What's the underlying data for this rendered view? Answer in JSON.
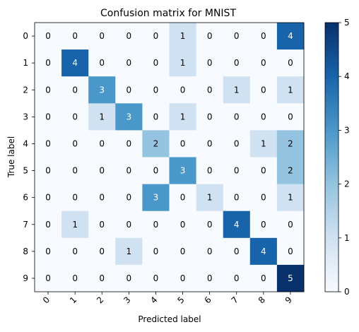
{
  "chart_data": {
    "type": "heatmap",
    "title": "Confusion matrix for MNIST",
    "xlabel": "Predicted label",
    "ylabel": "True label",
    "x_categories": [
      "0",
      "1",
      "2",
      "3",
      "4",
      "5",
      "6",
      "7",
      "8",
      "9"
    ],
    "y_categories": [
      "0",
      "1",
      "2",
      "3",
      "4",
      "5",
      "6",
      "7",
      "8",
      "9"
    ],
    "matrix": [
      [
        0,
        0,
        0,
        0,
        0,
        1,
        0,
        0,
        0,
        4
      ],
      [
        0,
        4,
        0,
        0,
        0,
        1,
        0,
        0,
        0,
        0
      ],
      [
        0,
        0,
        3,
        0,
        0,
        0,
        0,
        1,
        0,
        1
      ],
      [
        0,
        0,
        1,
        3,
        0,
        1,
        0,
        0,
        0,
        0
      ],
      [
        0,
        0,
        0,
        0,
        2,
        0,
        0,
        0,
        1,
        2
      ],
      [
        0,
        0,
        0,
        0,
        0,
        3,
        0,
        0,
        0,
        2
      ],
      [
        0,
        0,
        0,
        0,
        3,
        0,
        1,
        0,
        0,
        1
      ],
      [
        0,
        1,
        0,
        0,
        0,
        0,
        0,
        4,
        0,
        0
      ],
      [
        0,
        0,
        0,
        1,
        0,
        0,
        0,
        0,
        4,
        0
      ],
      [
        0,
        0,
        0,
        0,
        0,
        0,
        0,
        0,
        0,
        5
      ]
    ],
    "colorbar": {
      "min": 0,
      "max": 5,
      "ticks": [
        0,
        1,
        2,
        3,
        4,
        5
      ]
    },
    "colormap": {
      "name": "Blues",
      "stops": [
        "#f7fbff",
        "#d0e1f2",
        "#94c4df",
        "#4a98c9",
        "#1764ab",
        "#08306b"
      ]
    },
    "text_colors": {
      "light": "#ffffff",
      "dark": "#000000"
    },
    "grid": false,
    "xtick_rotation": "45"
  }
}
